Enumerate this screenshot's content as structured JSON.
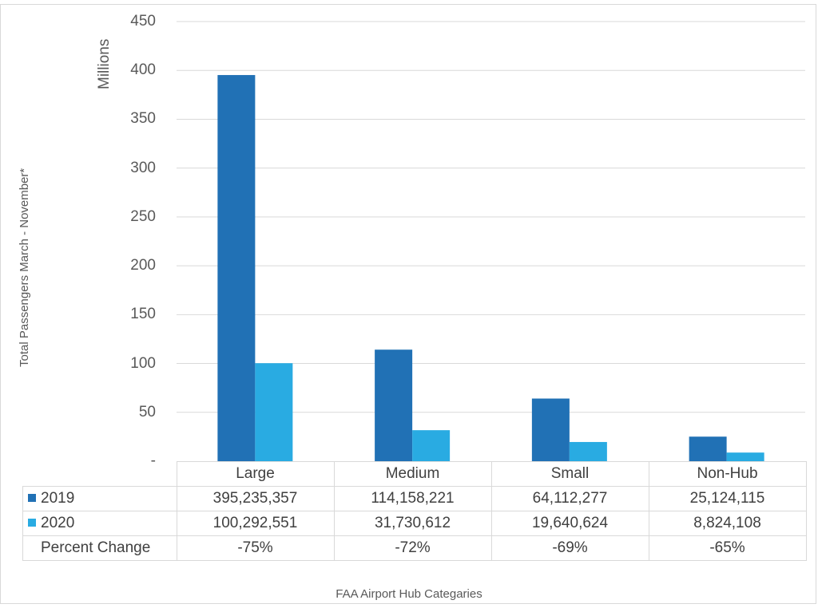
{
  "chart_data": {
    "type": "bar",
    "categories": [
      "Large",
      "Medium",
      "Small",
      "Non-Hub"
    ],
    "series": [
      {
        "name": "2019",
        "color": "#2171b5",
        "values": [
          395.235357,
          114.158221,
          64.112277,
          25.124115
        ]
      },
      {
        "name": "2020",
        "color": "#29abe2",
        "values": [
          100.292551,
          31.730612,
          19.640624,
          8.824108
        ]
      }
    ],
    "ylabel": "Total Passengers  March - November*",
    "yunits": "Millions",
    "xlabel": "FAA Airport Hub Categaries",
    "ylim": [
      0,
      450
    ],
    "yticks": [
      "-",
      "50",
      "100",
      "150",
      "200",
      "250",
      "300",
      "350",
      "400",
      "450"
    ],
    "grid": true,
    "legend": "data-table",
    "table": {
      "rows": [
        {
          "label": "2019",
          "cells": [
            "395,235,357",
            "114,158,221",
            "64,112,277",
            "25,124,115"
          ]
        },
        {
          "label": "2020",
          "cells": [
            "100,292,551",
            "31,730,612",
            "19,640,624",
            "8,824,108"
          ]
        },
        {
          "label": "Percent Change",
          "cells": [
            "-75%",
            "-72%",
            "-69%",
            "-65%"
          ]
        }
      ]
    }
  }
}
